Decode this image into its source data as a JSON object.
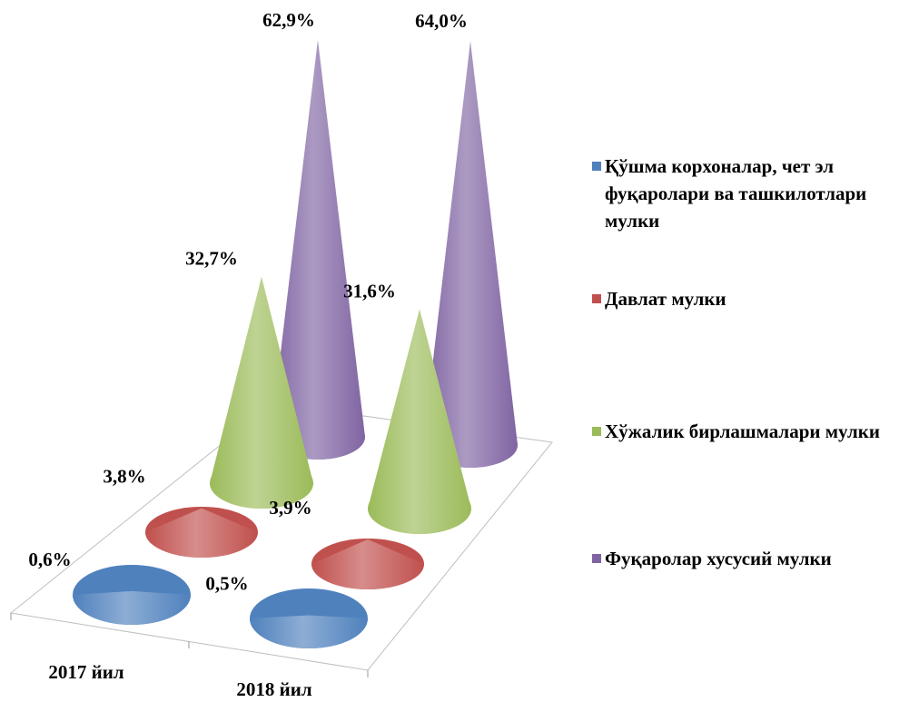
{
  "chart_data": {
    "type": "cone3d",
    "categories": [
      "2017 йил",
      "2018 йил"
    ],
    "series": [
      {
        "name": "Қўшма корхоналар, чет эл фуқаролари ва ташкилотлари мулки",
        "color": "#4f81bd",
        "values": [
          0.6,
          0.5
        ],
        "value_labels": [
          "0,6%",
          "0,5%"
        ]
      },
      {
        "name": "Давлат мулки",
        "color": "#c0504d",
        "values": [
          3.8,
          3.9
        ],
        "value_labels": [
          "3,8%",
          "3,9%"
        ]
      },
      {
        "name": "Хўжалик бирлашмалари мулки",
        "color": "#9bbb59",
        "values": [
          32.7,
          31.6
        ],
        "value_labels": [
          "32,7%",
          "31,6%"
        ]
      },
      {
        "name": "Фуқаролар хусусий мулки",
        "color": "#8064a2",
        "values": [
          62.9,
          64.0
        ],
        "value_labels": [
          "62,9%",
          "64,0%"
        ]
      }
    ],
    "legend": "right"
  }
}
